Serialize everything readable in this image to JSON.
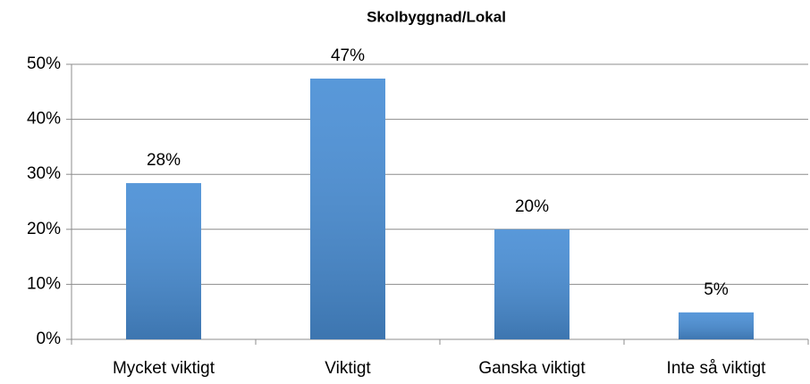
{
  "chart_data": {
    "type": "bar",
    "title": "Skolbyggnad/Lokal",
    "categories": [
      "Mycket viktigt",
      "Viktigt",
      "Ganska viktigt",
      "Inte så viktigt"
    ],
    "values": [
      28.4,
      47.4,
      20,
      4.9
    ],
    "value_labels": [
      "28%",
      "47%",
      "20%",
      "5%"
    ],
    "color": "#4a8fd6",
    "ylim": [
      0,
      50
    ],
    "yticks": [
      {
        "value": 0,
        "label": "0%"
      },
      {
        "value": 10,
        "label": "10%"
      },
      {
        "value": 20,
        "label": "20%"
      },
      {
        "value": 30,
        "label": "30%"
      },
      {
        "value": 40,
        "label": "40%"
      },
      {
        "value": 50,
        "label": "50%"
      }
    ],
    "grid": true
  }
}
